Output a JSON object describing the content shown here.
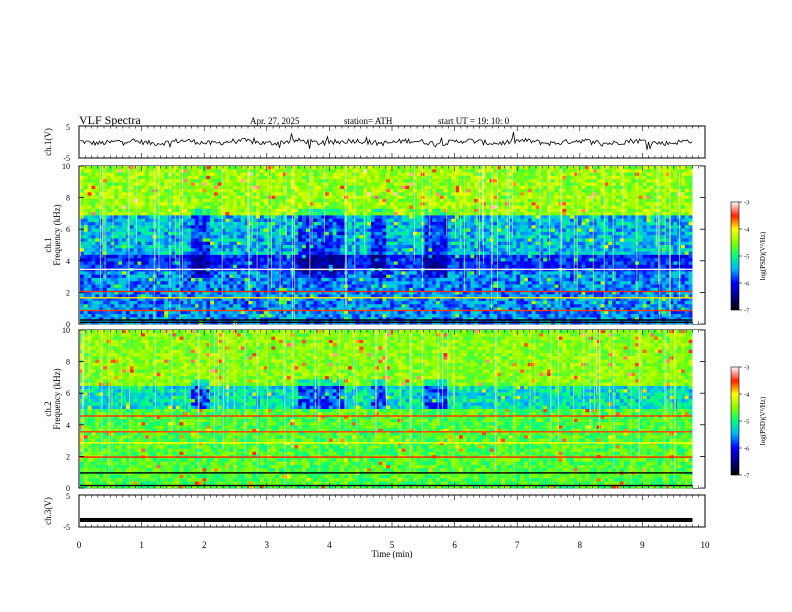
{
  "header": {
    "title": "VLF  Spectra",
    "date": "Apr. 27, 2025",
    "station": "station= ATH",
    "start": "start  UT  =    19: 10: 0"
  },
  "chart_data": [
    {
      "type": "line",
      "panel": "ch1-waveform",
      "ylabel": "ch.1(V)",
      "yticks": [
        "5",
        "-5"
      ],
      "ylim": [
        -5,
        5
      ],
      "xlim": [
        0,
        10
      ],
      "data_end_min": 9.8,
      "description_of_signal": "noisy waveform near 0 V with spikes"
    },
    {
      "type": "heatmap",
      "panel": "ch1-spectrogram",
      "ylabel_line1": "ch.1",
      "ylabel_line2": "Frequency  (kHz)",
      "yticks": [
        "10",
        "8",
        "6",
        "4",
        "2",
        "0"
      ],
      "ylim": [
        0,
        10
      ],
      "xlim": [
        0,
        10
      ],
      "colorbar": {
        "label": "log(PSD)(V²/Hz)",
        "ticks": [
          "-3",
          "-4",
          "-5",
          "-6",
          "-7"
        ],
        "range": [
          -7,
          -3
        ]
      }
    },
    {
      "type": "heatmap",
      "panel": "ch2-spectrogram",
      "ylabel_line1": "ch.2",
      "ylabel_line2": "Frequency  (kHz)",
      "yticks": [
        "10",
        "8",
        "6",
        "4",
        "2",
        "0"
      ],
      "ylim": [
        0,
        10
      ],
      "xlim": [
        0,
        10
      ],
      "colorbar": {
        "label": "log(PSD)(V²/Hz)",
        "ticks": [
          "-3",
          "-4",
          "-5",
          "-6",
          "-7"
        ],
        "range": [
          -7,
          -3
        ]
      }
    },
    {
      "type": "line",
      "panel": "ch3-waveform",
      "ylabel": "ch.3(V)",
      "yticks": [
        "5",
        "-5"
      ],
      "ylim": [
        -5,
        5
      ],
      "xlim": [
        0,
        10
      ],
      "value_approx": -2.8
    }
  ],
  "x_axis": {
    "label": "Time  (min)",
    "ticks": [
      "0",
      "1",
      "2",
      "3",
      "4",
      "5",
      "6",
      "7",
      "8",
      "9",
      "10"
    ],
    "range": [
      0,
      10
    ]
  }
}
